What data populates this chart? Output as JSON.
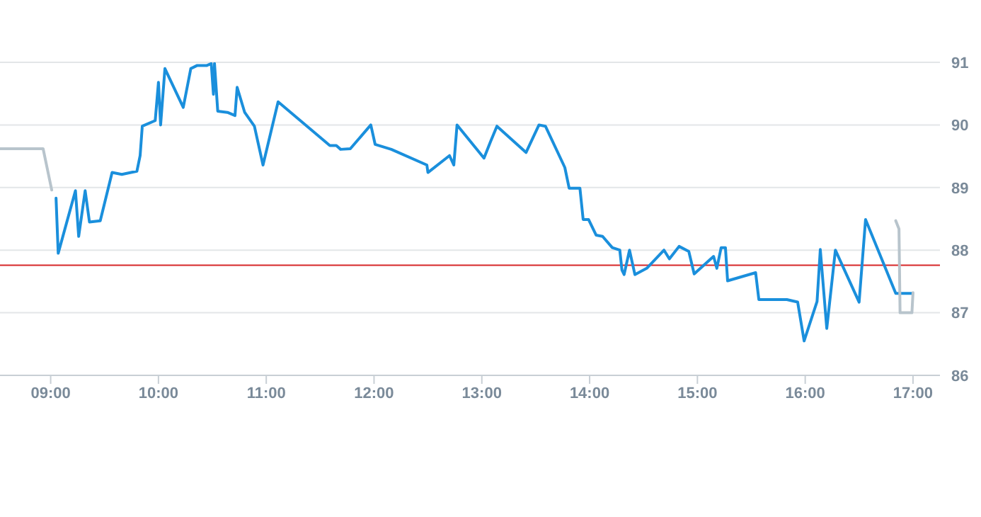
{
  "chart_data": {
    "type": "line",
    "xlim": [
      8.53,
      17.25
    ],
    "xticks": [
      {
        "value": 9,
        "label": "09:00"
      },
      {
        "value": 10,
        "label": "10:00"
      },
      {
        "value": 11,
        "label": "11:00"
      },
      {
        "value": 12,
        "label": "12:00"
      },
      {
        "value": 13,
        "label": "13:00"
      },
      {
        "value": 14,
        "label": "14:00"
      },
      {
        "value": 15,
        "label": "15:00"
      },
      {
        "value": 16,
        "label": "16:00"
      },
      {
        "value": 17,
        "label": "17:00"
      }
    ],
    "ylim": [
      86,
      91
    ],
    "yticks": [
      86,
      87,
      88,
      89,
      90,
      91
    ],
    "grid": "y",
    "marker": "none",
    "line_style": "solid",
    "ref_lines": [
      {
        "axis": "y",
        "value": 87.76,
        "color": "#d62728"
      }
    ],
    "series": [
      {
        "color": "#b8c4cc",
        "x": [
          8.53,
          8.93,
          9.01
        ],
        "values": [
          89.62,
          89.62,
          88.96
        ]
      },
      {
        "color": "#1a8fdc",
        "x": [
          9.05,
          9.07,
          9.23,
          9.26,
          9.32,
          9.36,
          9.46,
          9.57,
          9.66,
          9.8,
          9.83,
          9.85,
          9.97,
          10.0,
          10.02,
          10.06,
          10.23,
          10.3,
          10.36,
          10.45,
          10.49,
          10.51,
          10.52,
          10.55,
          10.64,
          10.71,
          10.73,
          10.8,
          10.89,
          10.97,
          11.11,
          11.59,
          11.65,
          11.69,
          11.78,
          11.97,
          12.01,
          12.16,
          12.49,
          12.5,
          12.7,
          12.74,
          12.77,
          13.02,
          13.08,
          13.14,
          13.41,
          13.53,
          13.59,
          13.77,
          13.81,
          13.91,
          13.94,
          13.99,
          14.06,
          14.12,
          14.21,
          14.28,
          14.3,
          14.32,
          14.37,
          14.42,
          14.53,
          14.69,
          14.74,
          14.83,
          14.92,
          14.97,
          15.15,
          15.18,
          15.22,
          15.26,
          15.28,
          15.54,
          15.57,
          15.83,
          15.93,
          15.99,
          16.11,
          16.14,
          16.2,
          16.28,
          16.5,
          16.56,
          16.84,
          16.99
        ],
        "values": [
          88.83,
          87.95,
          88.95,
          88.22,
          88.95,
          88.45,
          88.47,
          89.24,
          89.21,
          89.26,
          89.51,
          89.98,
          90.07,
          90.68,
          90.0,
          90.9,
          90.28,
          90.9,
          90.95,
          90.95,
          90.98,
          90.49,
          90.98,
          90.22,
          90.2,
          90.15,
          90.6,
          90.2,
          89.98,
          89.36,
          90.37,
          89.67,
          89.67,
          89.61,
          89.62,
          90.0,
          89.69,
          89.61,
          89.36,
          89.24,
          89.51,
          89.36,
          90.0,
          89.47,
          89.73,
          89.98,
          89.56,
          90.0,
          89.98,
          89.32,
          88.99,
          88.99,
          88.49,
          88.49,
          88.24,
          88.22,
          88.04,
          88.0,
          87.68,
          87.61,
          88.0,
          87.61,
          87.71,
          88.0,
          87.86,
          88.06,
          87.98,
          87.62,
          87.9,
          87.71,
          88.04,
          88.04,
          87.51,
          87.64,
          87.21,
          87.21,
          87.17,
          86.55,
          87.18,
          88.01,
          86.75,
          88.0,
          87.17,
          88.49,
          87.31,
          87.31
        ]
      },
      {
        "color": "#b8c4cc",
        "x": [
          16.84,
          16.87,
          16.88,
          16.99,
          17.0
        ],
        "values": [
          88.47,
          88.34,
          87.0,
          87.0,
          87.32
        ]
      }
    ]
  }
}
